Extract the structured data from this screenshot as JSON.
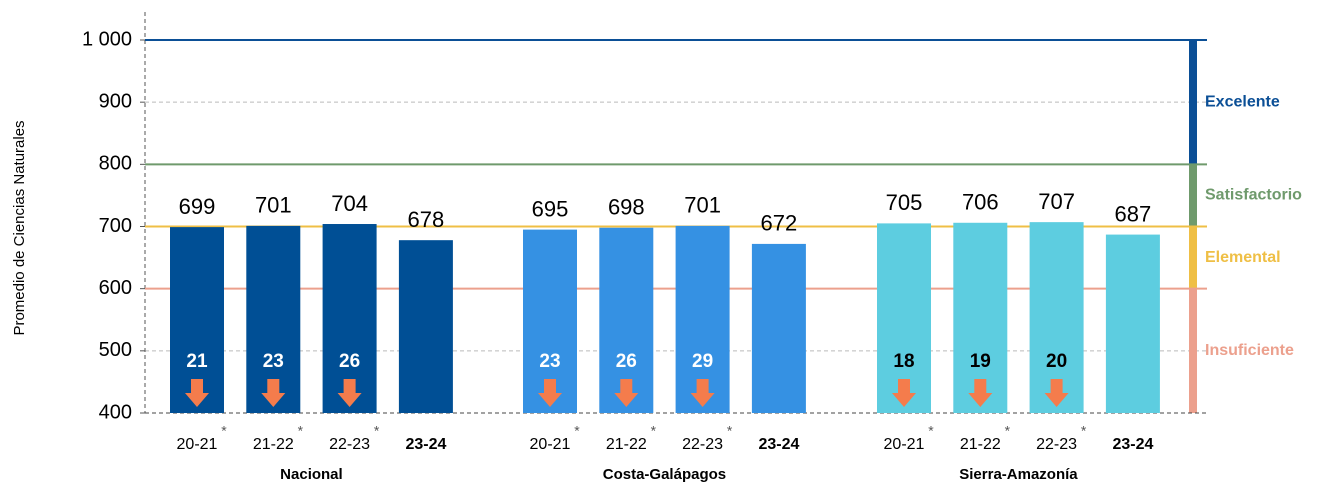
{
  "chart_data": {
    "type": "bar",
    "ylabel": "Promedio de Ciencias Naturales",
    "ylim": [
      400,
      1000
    ],
    "yticks": [
      400,
      500,
      600,
      700,
      800,
      900,
      {
        "value": 1000,
        "label": "1 000"
      }
    ],
    "grid": true,
    "categories": [
      "20-21",
      "21-22",
      "22-23",
      "23-24"
    ],
    "marker": "*",
    "marked": [
      true,
      true,
      true,
      false
    ],
    "bold": [
      false,
      false,
      false,
      true
    ],
    "arrow_color": "#f47c4c",
    "series": [
      {
        "name": "Nacional",
        "color": "#004f95",
        "values": [
          699,
          701,
          704,
          678
        ],
        "differences": [
          21,
          23,
          26,
          null
        ],
        "difference_color": "#ffffff"
      },
      {
        "name": "Costa-Galápagos",
        "color": "#3591e3",
        "values": [
          695,
          698,
          701,
          672
        ],
        "differences": [
          23,
          26,
          29,
          null
        ],
        "difference_color": "#ffffff"
      },
      {
        "name": "Sierra-Amazonía",
        "color": "#5dcde0",
        "values": [
          705,
          706,
          707,
          687
        ],
        "differences": [
          18,
          19,
          20,
          null
        ],
        "difference_color": "#000000"
      }
    ],
    "bands": [
      {
        "name": "Excelente",
        "from": 800,
        "to": 1000,
        "color": "#0b4f96"
      },
      {
        "name": "Satisfactorio",
        "from": 700,
        "to": 800,
        "color": "#6f9a6c"
      },
      {
        "name": "Elemental",
        "from": 600,
        "to": 700,
        "color": "#efbf45"
      },
      {
        "name": "Insuficiente",
        "from": 400,
        "to": 600,
        "color": "#eca08d"
      }
    ]
  }
}
